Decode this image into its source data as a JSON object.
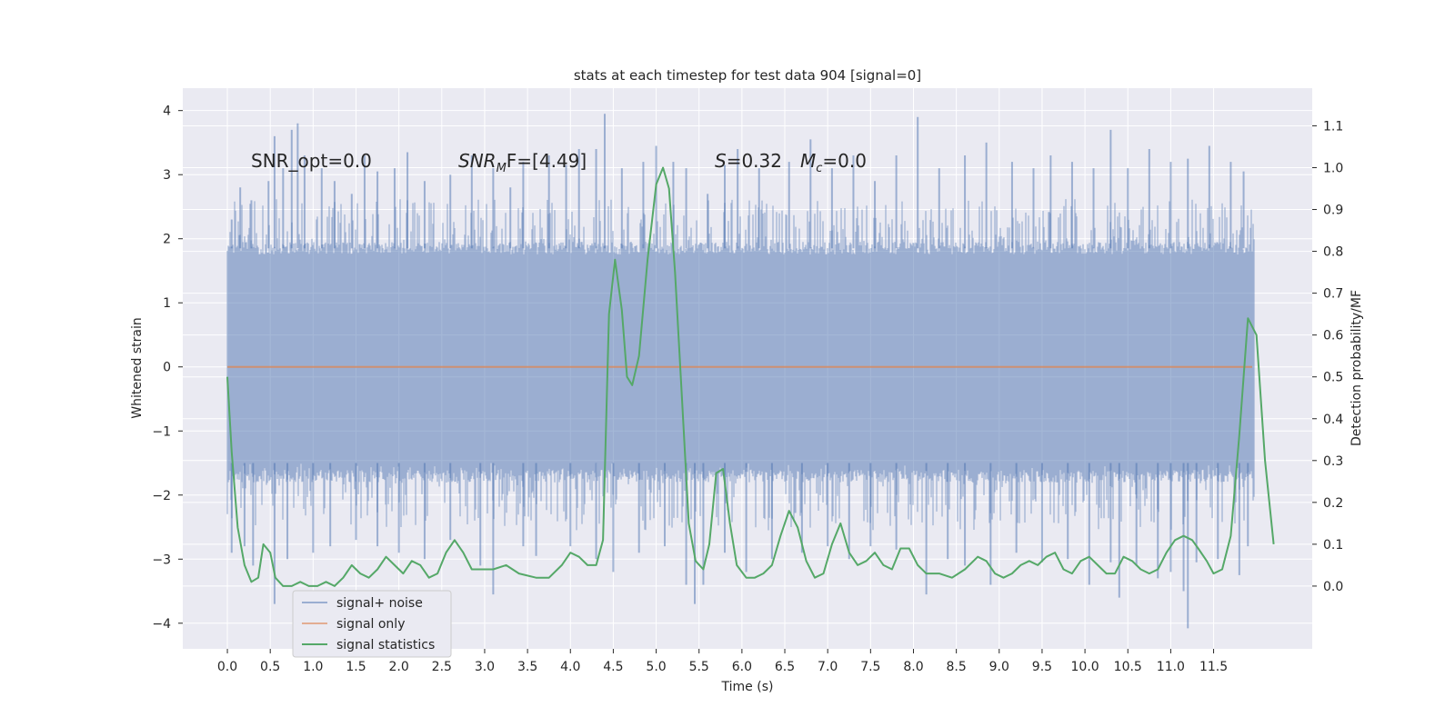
{
  "chart_data": {
    "type": "line",
    "title": "stats at each timestep for test data 904 [signal=0]",
    "xlabel": "Time (s)",
    "ylabel": "Whitened strain",
    "y2label": "Detection probability/MF",
    "xlim": [
      -0.52,
      12.65
    ],
    "ylim": [
      -4.4,
      4.35
    ],
    "y2lim": [
      -0.15,
      1.19
    ],
    "x_ticks": [
      "0.0",
      "0.5",
      "1.0",
      "1.5",
      "2.0",
      "2.5",
      "3.0",
      "3.5",
      "4.0",
      "4.5",
      "5.0",
      "5.5",
      "6.0",
      "6.5",
      "7.0",
      "7.5",
      "8.0",
      "8.5",
      "9.0",
      "9.5",
      "10.0",
      "10.5",
      "11.0",
      "11.5"
    ],
    "y_ticks": [
      "4",
      "3",
      "2",
      "1",
      "0",
      "−1",
      "−2",
      "−3",
      "−4"
    ],
    "y2_ticks": [
      "1.1",
      "1.0",
      "0.9",
      "0.8",
      "0.7",
      "0.6",
      "0.5",
      "0.4",
      "0.3",
      "0.2",
      "0.1",
      "0.0"
    ],
    "grid": true,
    "legend_position": "lower-left",
    "colors": {
      "background": "#eaeaf2",
      "grid": "#ffffff",
      "noise": "#4c72b0",
      "signal": "#dd8452",
      "statistics": "#55a868"
    },
    "annotations": [
      {
        "text": "SNR_opt=0.0"
      },
      {
        "text": "SNR",
        "sub": "M",
        "rest": "F=[4.49]"
      },
      {
        "text": "S",
        "rest": "=0.32"
      },
      {
        "text": "M",
        "sub": "c",
        "rest": "=0.0"
      }
    ],
    "noise_band": {
      "upper_typical": 1.85,
      "lower_typical": -1.5,
      "upper_peak_max": 3.95,
      "lower_peak_min": -4.08
    },
    "noise_peaks_upper": [
      [
        0.05,
        2.3
      ],
      [
        0.15,
        2.8
      ],
      [
        0.28,
        2.6
      ],
      [
        0.48,
        2.9
      ],
      [
        0.55,
        3.6
      ],
      [
        0.65,
        3.1
      ],
      [
        0.75,
        3.7
      ],
      [
        0.82,
        3.8
      ],
      [
        0.9,
        3.3
      ],
      [
        1.1,
        3.1
      ],
      [
        1.25,
        2.9
      ],
      [
        1.45,
        2.7
      ],
      [
        1.6,
        3.3
      ],
      [
        1.75,
        3.05
      ],
      [
        1.95,
        3.1
      ],
      [
        2.1,
        3.35
      ],
      [
        2.3,
        2.9
      ],
      [
        2.6,
        3.0
      ],
      [
        2.85,
        3.3
      ],
      [
        3.1,
        3.1
      ],
      [
        3.3,
        2.8
      ],
      [
        3.45,
        3.2
      ],
      [
        3.75,
        3.3
      ],
      [
        3.95,
        3.15
      ],
      [
        4.1,
        3.4
      ],
      [
        4.3,
        3.4
      ],
      [
        4.4,
        3.95
      ],
      [
        4.6,
        3.1
      ],
      [
        4.85,
        3.2
      ],
      [
        5.0,
        3.45
      ],
      [
        5.2,
        3.2
      ],
      [
        5.35,
        3.1
      ],
      [
        5.6,
        2.7
      ],
      [
        5.8,
        3.15
      ],
      [
        5.95,
        3.4
      ],
      [
        6.2,
        3.1
      ],
      [
        6.55,
        3.2
      ],
      [
        6.8,
        3.55
      ],
      [
        7.05,
        3.1
      ],
      [
        7.3,
        3.3
      ],
      [
        7.55,
        2.9
      ],
      [
        7.8,
        3.3
      ],
      [
        8.05,
        3.9
      ],
      [
        8.3,
        3.1
      ],
      [
        8.6,
        3.3
      ],
      [
        8.85,
        3.5
      ],
      [
        9.15,
        3.2
      ],
      [
        9.4,
        3.1
      ],
      [
        9.6,
        3.3
      ],
      [
        9.85,
        3.2
      ],
      [
        10.1,
        3.1
      ],
      [
        10.3,
        3.7
      ],
      [
        10.5,
        3.1
      ],
      [
        10.75,
        3.4
      ],
      [
        11.0,
        3.2
      ],
      [
        11.2,
        3.25
      ],
      [
        11.45,
        3.45
      ],
      [
        11.7,
        3.2
      ],
      [
        11.85,
        3.05
      ]
    ],
    "noise_peaks_lower": [
      [
        0.05,
        -2.9
      ],
      [
        0.2,
        -2.8
      ],
      [
        0.3,
        -3.1
      ],
      [
        0.55,
        -3.7
      ],
      [
        0.7,
        -3.0
      ],
      [
        1.0,
        -2.9
      ],
      [
        1.2,
        -2.8
      ],
      [
        1.5,
        -2.7
      ],
      [
        1.75,
        -2.8
      ],
      [
        2.0,
        -2.9
      ],
      [
        2.3,
        -3.0
      ],
      [
        2.6,
        -2.7
      ],
      [
        2.95,
        -3.1
      ],
      [
        3.1,
        -3.55
      ],
      [
        3.45,
        -2.8
      ],
      [
        3.6,
        -2.95
      ],
      [
        4.0,
        -2.8
      ],
      [
        4.3,
        -3.0
      ],
      [
        4.5,
        -3.2
      ],
      [
        4.8,
        -2.9
      ],
      [
        5.1,
        -2.8
      ],
      [
        5.35,
        -3.4
      ],
      [
        5.45,
        -3.7
      ],
      [
        5.55,
        -3.4
      ],
      [
        5.8,
        -2.9
      ],
      [
        6.05,
        -3.2
      ],
      [
        6.35,
        -3.0
      ],
      [
        6.7,
        -2.9
      ],
      [
        7.0,
        -2.8
      ],
      [
        7.25,
        -3.0
      ],
      [
        7.5,
        -2.8
      ],
      [
        7.8,
        -2.85
      ],
      [
        8.15,
        -3.55
      ],
      [
        8.4,
        -3.0
      ],
      [
        8.6,
        -3.1
      ],
      [
        8.9,
        -3.4
      ],
      [
        9.2,
        -2.9
      ],
      [
        9.5,
        -3.05
      ],
      [
        9.8,
        -3.0
      ],
      [
        10.05,
        -3.4
      ],
      [
        10.3,
        -3.05
      ],
      [
        10.4,
        -3.6
      ],
      [
        10.6,
        -3.1
      ],
      [
        10.85,
        -3.3
      ],
      [
        11.0,
        -3.2
      ],
      [
        11.15,
        -3.5
      ],
      [
        11.2,
        -4.08
      ],
      [
        11.3,
        -3.05
      ],
      [
        11.55,
        -3.0
      ],
      [
        11.8,
        -3.25
      ],
      [
        11.9,
        -2.8
      ]
    ],
    "series": [
      {
        "name": "signal+ noise",
        "type": "noise"
      },
      {
        "name": "signal only",
        "values": [
          [
            0,
            0
          ],
          [
            11.95,
            0
          ]
        ]
      },
      {
        "name": "signal statistics",
        "axis": "right",
        "values": [
          [
            0.0,
            0.5
          ],
          [
            0.05,
            0.32
          ],
          [
            0.12,
            0.14
          ],
          [
            0.2,
            0.05
          ],
          [
            0.28,
            0.01
          ],
          [
            0.36,
            0.02
          ],
          [
            0.42,
            0.1
          ],
          [
            0.5,
            0.08
          ],
          [
            0.56,
            0.02
          ],
          [
            0.65,
            0.0
          ],
          [
            0.75,
            0.0
          ],
          [
            0.85,
            0.01
          ],
          [
            0.95,
            0.0
          ],
          [
            1.05,
            0.0
          ],
          [
            1.15,
            0.01
          ],
          [
            1.25,
            0.0
          ],
          [
            1.35,
            0.02
          ],
          [
            1.45,
            0.05
          ],
          [
            1.55,
            0.03
          ],
          [
            1.65,
            0.02
          ],
          [
            1.75,
            0.04
          ],
          [
            1.85,
            0.07
          ],
          [
            1.95,
            0.05
          ],
          [
            2.05,
            0.03
          ],
          [
            2.15,
            0.06
          ],
          [
            2.25,
            0.05
          ],
          [
            2.35,
            0.02
          ],
          [
            2.45,
            0.03
          ],
          [
            2.55,
            0.08
          ],
          [
            2.65,
            0.11
          ],
          [
            2.75,
            0.08
          ],
          [
            2.85,
            0.04
          ],
          [
            2.95,
            0.04
          ],
          [
            3.1,
            0.04
          ],
          [
            3.25,
            0.05
          ],
          [
            3.4,
            0.03
          ],
          [
            3.6,
            0.02
          ],
          [
            3.75,
            0.02
          ],
          [
            3.9,
            0.05
          ],
          [
            4.0,
            0.08
          ],
          [
            4.1,
            0.07
          ],
          [
            4.2,
            0.05
          ],
          [
            4.3,
            0.05
          ],
          [
            4.38,
            0.11
          ],
          [
            4.45,
            0.65
          ],
          [
            4.52,
            0.78
          ],
          [
            4.6,
            0.66
          ],
          [
            4.66,
            0.5
          ],
          [
            4.72,
            0.48
          ],
          [
            4.8,
            0.55
          ],
          [
            4.9,
            0.78
          ],
          [
            5.0,
            0.96
          ],
          [
            5.08,
            1.0
          ],
          [
            5.15,
            0.95
          ],
          [
            5.22,
            0.75
          ],
          [
            5.3,
            0.45
          ],
          [
            5.38,
            0.15
          ],
          [
            5.46,
            0.06
          ],
          [
            5.55,
            0.04
          ],
          [
            5.62,
            0.1
          ],
          [
            5.7,
            0.27
          ],
          [
            5.78,
            0.28
          ],
          [
            5.86,
            0.15
          ],
          [
            5.94,
            0.05
          ],
          [
            6.05,
            0.02
          ],
          [
            6.15,
            0.02
          ],
          [
            6.25,
            0.03
          ],
          [
            6.35,
            0.05
          ],
          [
            6.45,
            0.12
          ],
          [
            6.55,
            0.18
          ],
          [
            6.65,
            0.14
          ],
          [
            6.75,
            0.06
          ],
          [
            6.85,
            0.02
          ],
          [
            6.95,
            0.03
          ],
          [
            7.05,
            0.1
          ],
          [
            7.15,
            0.15
          ],
          [
            7.25,
            0.08
          ],
          [
            7.35,
            0.05
          ],
          [
            7.45,
            0.06
          ],
          [
            7.55,
            0.08
          ],
          [
            7.65,
            0.05
          ],
          [
            7.75,
            0.04
          ],
          [
            7.85,
            0.09
          ],
          [
            7.95,
            0.09
          ],
          [
            8.05,
            0.05
          ],
          [
            8.15,
            0.03
          ],
          [
            8.3,
            0.03
          ],
          [
            8.45,
            0.02
          ],
          [
            8.6,
            0.04
          ],
          [
            8.75,
            0.07
          ],
          [
            8.85,
            0.06
          ],
          [
            8.95,
            0.03
          ],
          [
            9.05,
            0.02
          ],
          [
            9.15,
            0.03
          ],
          [
            9.25,
            0.05
          ],
          [
            9.35,
            0.06
          ],
          [
            9.45,
            0.05
          ],
          [
            9.55,
            0.07
          ],
          [
            9.65,
            0.08
          ],
          [
            9.75,
            0.04
          ],
          [
            9.85,
            0.03
          ],
          [
            9.95,
            0.06
          ],
          [
            10.05,
            0.07
          ],
          [
            10.15,
            0.05
          ],
          [
            10.25,
            0.03
          ],
          [
            10.35,
            0.03
          ],
          [
            10.45,
            0.07
          ],
          [
            10.55,
            0.06
          ],
          [
            10.65,
            0.04
          ],
          [
            10.75,
            0.03
          ],
          [
            10.85,
            0.04
          ],
          [
            10.95,
            0.08
          ],
          [
            11.05,
            0.11
          ],
          [
            11.15,
            0.12
          ],
          [
            11.25,
            0.11
          ],
          [
            11.32,
            0.09
          ],
          [
            11.42,
            0.06
          ],
          [
            11.5,
            0.03
          ],
          [
            11.6,
            0.04
          ],
          [
            11.7,
            0.12
          ],
          [
            11.8,
            0.36
          ],
          [
            11.9,
            0.64
          ],
          [
            12.0,
            0.6
          ],
          [
            12.1,
            0.3
          ],
          [
            12.2,
            0.1
          ]
        ]
      }
    ]
  }
}
